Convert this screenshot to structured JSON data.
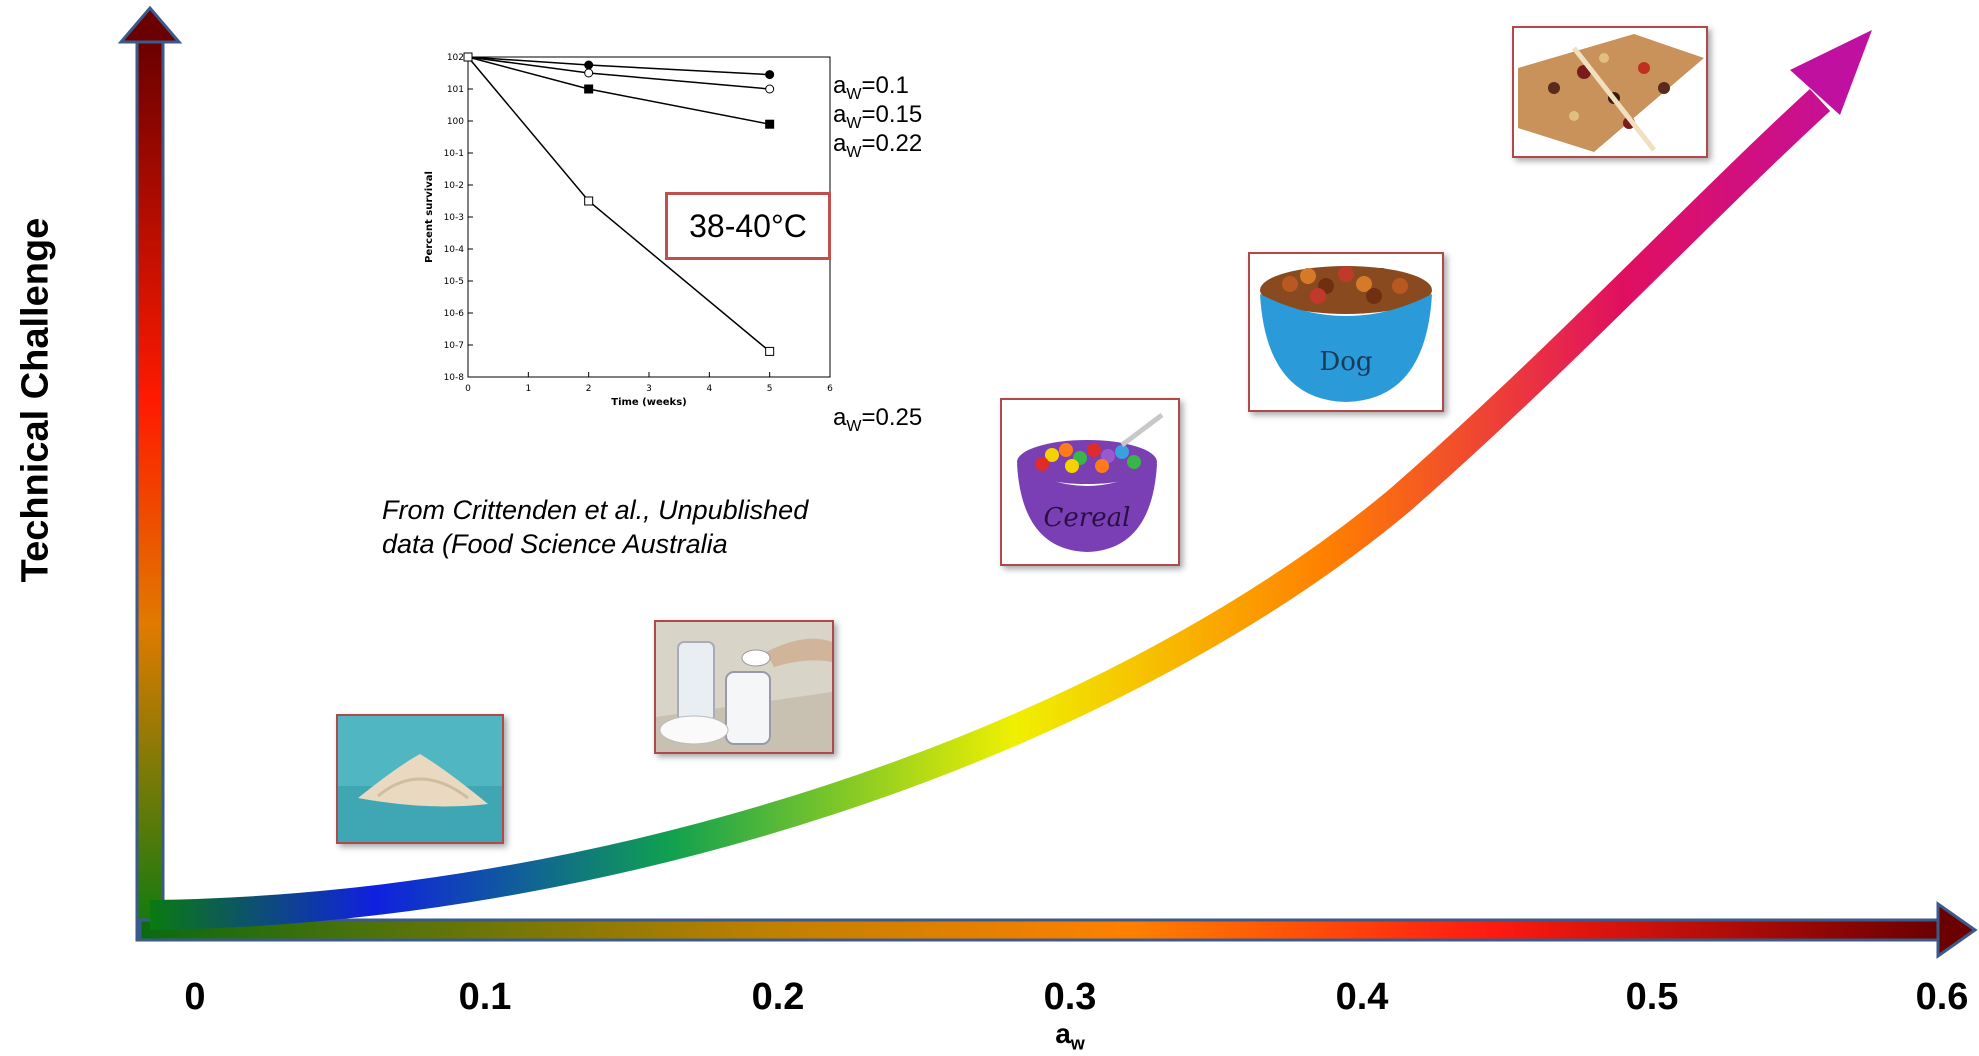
{
  "y_axis_label": "Technical Challenge",
  "x_axis": {
    "label": "a",
    "label_subscript": "w",
    "ticks": [
      "0",
      "0.1",
      "0.2",
      "0.3",
      "0.4",
      "0.5",
      "0.6"
    ]
  },
  "inset_chart": {
    "callout": "38-40°C",
    "citation_line1": "From Crittenden et al., Unpublished",
    "citation_line2": "data (Food Science Australia",
    "ylabel": "Percent survival",
    "xlabel": "Time (weeks)",
    "series_labels": [
      {
        "prefix": "a",
        "sub": "W",
        "value": "=0.1"
      },
      {
        "prefix": "a",
        "sub": "W",
        "value": "=0.15"
      },
      {
        "prefix": "a",
        "sub": "W",
        "value": "=0.22"
      },
      {
        "prefix": "a",
        "sub": "W",
        "value": "=0.25"
      }
    ]
  },
  "chart_data": {
    "type": "line",
    "title": "",
    "xlabel": "Time (weeks)",
    "ylabel": "Percent survival",
    "ylim_log10": [
      -8,
      2
    ],
    "xlim": [
      0,
      6
    ],
    "series": [
      {
        "name": "aW=0.1",
        "x": [
          0,
          2,
          5
        ],
        "log10_y": [
          2,
          1.75,
          1.45
        ]
      },
      {
        "name": "aW=0.15",
        "x": [
          0,
          2,
          5
        ],
        "log10_y": [
          2,
          1.5,
          1.0
        ]
      },
      {
        "name": "aW=0.22",
        "x": [
          0,
          2,
          5
        ],
        "log10_y": [
          2,
          1.0,
          -0.1
        ]
      },
      {
        "name": "aW=0.25",
        "x": [
          0,
          2,
          5
        ],
        "log10_y": [
          2,
          -2.5,
          -7.2
        ]
      }
    ]
  },
  "photos": [
    {
      "name": "powder-photo"
    },
    {
      "name": "infant-formula-photo"
    },
    {
      "name": "cereal-bowl-photo",
      "text": "Cereal"
    },
    {
      "name": "dog-food-bowl-photo",
      "text": "Dog"
    },
    {
      "name": "granola-bar-photo"
    }
  ],
  "colors": {
    "axis_outline": "#3b5a8a",
    "callout_border": "#c0504d",
    "photo_border": "#b04a4a"
  }
}
